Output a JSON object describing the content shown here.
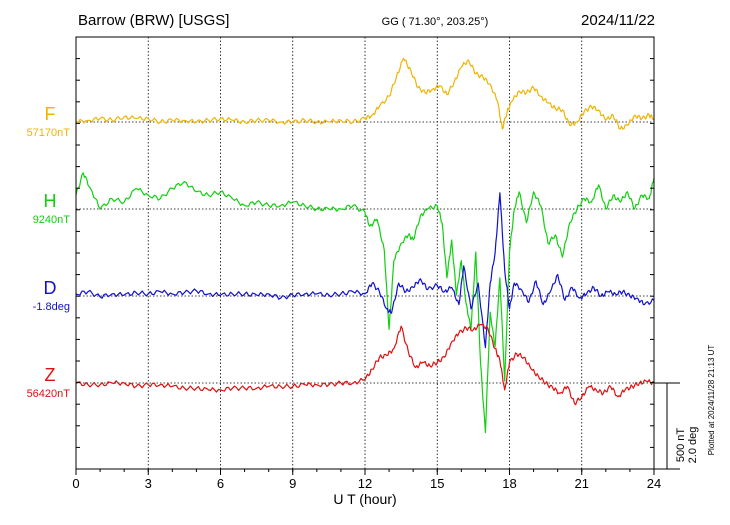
{
  "header": {
    "station": "Barrow (BRW)  [USGS]",
    "coords": "GG ( 71.30°, 203.25°)",
    "date": "2024/11/22"
  },
  "footer": {
    "xlabel": "U T (hour)",
    "plotted": "Plotted at 2024/11/28 21:13 UT"
  },
  "scale": {
    "nt": "500 nT",
    "deg": "2.0 deg"
  },
  "colors": {
    "F": "#f0b400",
    "H": "#10d010",
    "D": "#1010d0",
    "Z": "#e01010"
  },
  "chart_data": {
    "type": "line",
    "xlabel": "U T (hour)",
    "xlim": [
      0,
      24
    ],
    "x_ticks": [
      "0",
      "3",
      "6",
      "9",
      "12",
      "15",
      "18",
      "21",
      "24"
    ],
    "grid": true,
    "scale_bar": "500 nT / 2.0 deg",
    "series": [
      {
        "name": "F",
        "baseline_label": "57170nT",
        "baseline_value": 57170,
        "unit": "nT",
        "color": "#f0b400",
        "x": [
          0,
          0.5,
          1,
          1.5,
          2,
          2.5,
          3,
          3.5,
          4,
          4.5,
          5,
          5.5,
          6,
          6.5,
          7,
          7.5,
          8,
          8.5,
          9,
          9.5,
          10,
          10.5,
          11,
          11.5,
          12,
          12.3,
          12.6,
          13,
          13.3,
          13.6,
          13.9,
          14.2,
          14.5,
          14.8,
          15.1,
          15.4,
          15.7,
          16,
          16.3,
          16.6,
          16.9,
          17.2,
          17.5,
          17.7,
          17.9,
          18.1,
          18.4,
          18.7,
          19,
          19.3,
          19.6,
          19.9,
          20.2,
          20.5,
          20.8,
          21.1,
          21.4,
          21.7,
          22,
          22.3,
          22.6,
          22.9,
          23.2,
          23.5,
          23.8,
          24
        ],
        "values": [
          0,
          10,
          20,
          10,
          30,
          20,
          20,
          0,
          10,
          10,
          0,
          10,
          20,
          10,
          0,
          10,
          10,
          0,
          0,
          10,
          0,
          0,
          10,
          0,
          20,
          40,
          90,
          150,
          260,
          370,
          300,
          200,
          170,
          190,
          210,
          160,
          230,
          320,
          360,
          280,
          260,
          220,
          120,
          -40,
          60,
          120,
          180,
          170,
          200,
          150,
          110,
          80,
          70,
          -20,
          0,
          60,
          90,
          70,
          10,
          40,
          -40,
          -20,
          40,
          20,
          40,
          20
        ]
      },
      {
        "name": "H",
        "baseline_label": "9240nT",
        "baseline_value": 9240,
        "unit": "nT",
        "color": "#10d010",
        "x": [
          0,
          0.3,
          0.6,
          1,
          1.5,
          2,
          2.5,
          3,
          3.5,
          4,
          4.5,
          5,
          5.5,
          6,
          6.5,
          7,
          7.5,
          8,
          8.5,
          9,
          9.5,
          10,
          10.5,
          11,
          11.5,
          12,
          12.2,
          12.5,
          12.8,
          13,
          13.2,
          13.5,
          13.8,
          14,
          14.3,
          14.6,
          15,
          15.2,
          15.4,
          15.6,
          15.8,
          16,
          16.2,
          16.4,
          16.6,
          16.8,
          17,
          17.2,
          17.4,
          17.6,
          17.8,
          18,
          18.2,
          18.4,
          18.7,
          19,
          19.3,
          19.6,
          19.9,
          20.2,
          20.5,
          20.8,
          21.1,
          21.4,
          21.7,
          22,
          22.3,
          22.6,
          22.9,
          23.2,
          23.5,
          23.8,
          24
        ],
        "values": [
          80,
          210,
          120,
          0,
          60,
          40,
          120,
          80,
          60,
          120,
          160,
          100,
          80,
          100,
          60,
          20,
          40,
          20,
          20,
          40,
          20,
          0,
          0,
          0,
          20,
          -20,
          -100,
          -60,
          -240,
          -700,
          -300,
          -200,
          -150,
          -180,
          -40,
          0,
          20,
          -80,
          -400,
          -180,
          -500,
          -300,
          -550,
          -700,
          -250,
          -900,
          -1300,
          -600,
          -800,
          -400,
          -1000,
          -250,
          0,
          100,
          -80,
          100,
          20,
          -200,
          -150,
          -280,
          -80,
          0,
          60,
          40,
          140,
          0,
          80,
          40,
          100,
          0,
          80,
          60,
          180
        ]
      },
      {
        "name": "D",
        "baseline_label": "-1.8deg",
        "baseline_value": -1.8,
        "unit": "deg",
        "color": "#1010d0",
        "x": [
          0,
          0.5,
          1,
          1.5,
          2,
          2.5,
          3,
          3.5,
          4,
          4.5,
          5,
          5.5,
          6,
          6.5,
          7,
          7.5,
          8,
          8.5,
          9,
          9.5,
          10,
          10.5,
          11,
          11.5,
          12,
          12.3,
          12.6,
          12.9,
          13.1,
          13.4,
          13.7,
          14,
          14.3,
          14.6,
          15,
          15.3,
          15.6,
          15.9,
          16.1,
          16.4,
          16.7,
          17,
          17.2,
          17.4,
          17.6,
          17.8,
          18,
          18.2,
          18.5,
          18.8,
          19.1,
          19.4,
          19.7,
          20,
          20.3,
          20.6,
          20.9,
          21.2,
          21.5,
          21.8,
          22.1,
          22.4,
          22.7,
          23,
          23.3,
          23.6,
          24
        ],
        "values": [
          0.05,
          0.1,
          -0.02,
          0.05,
          0.02,
          0.08,
          0.05,
          0.1,
          0.05,
          0.08,
          0.12,
          0.05,
          0.02,
          0.05,
          0.05,
          0.02,
          0.05,
          -0.05,
          0.02,
          0.05,
          0.05,
          0.02,
          0.05,
          0.1,
          0.05,
          0.3,
          0.1,
          -0.3,
          -0.4,
          0.3,
          0.1,
          0.2,
          0.4,
          0.15,
          0.25,
          0.1,
          0.2,
          -0.2,
          0.7,
          -0.3,
          0.3,
          -1.2,
          0.3,
          1.0,
          2.4,
          0.6,
          -0.3,
          0.3,
          0.15,
          -0.15,
          0.35,
          -0.2,
          0.1,
          0.5,
          -0.1,
          0.2,
          -0.05,
          0.05,
          0.2,
          0,
          0.1,
          0.05,
          0.1,
          0,
          -0.05,
          -0.2,
          -0.1
        ]
      },
      {
        "name": "Z",
        "baseline_label": "56420nT",
        "baseline_value": 56420,
        "unit": "nT",
        "color": "#e01010",
        "x": [
          0,
          0.5,
          1,
          1.5,
          2,
          2.5,
          3,
          3.5,
          4,
          4.5,
          5,
          5.5,
          6,
          6.5,
          7,
          7.5,
          8,
          8.5,
          9,
          9.5,
          10,
          10.5,
          11,
          11.5,
          12,
          12.3,
          12.6,
          12.9,
          13.2,
          13.5,
          13.8,
          14.1,
          14.4,
          14.7,
          15,
          15.3,
          15.6,
          15.9,
          16.2,
          16.5,
          16.8,
          17.1,
          17.4,
          17.6,
          17.8,
          18,
          18.3,
          18.6,
          18.9,
          19.2,
          19.5,
          19.8,
          20.1,
          20.4,
          20.7,
          21,
          21.3,
          21.6,
          21.9,
          22.2,
          22.5,
          22.8,
          23.1,
          23.4,
          23.7,
          24
        ],
        "values": [
          0,
          -10,
          -10,
          0,
          0,
          -20,
          -10,
          -10,
          -20,
          -30,
          -30,
          -40,
          -40,
          -30,
          -30,
          -30,
          -20,
          -20,
          -20,
          -10,
          -10,
          -10,
          0,
          0,
          20,
          80,
          150,
          160,
          200,
          330,
          180,
          90,
          120,
          100,
          120,
          150,
          240,
          290,
          320,
          310,
          340,
          320,
          200,
          130,
          -40,
          120,
          170,
          150,
          80,
          40,
          0,
          -30,
          -60,
          -20,
          -120,
          -80,
          -20,
          -40,
          -60,
          -20,
          -80,
          -40,
          -20,
          0,
          10,
          0
        ]
      }
    ]
  }
}
